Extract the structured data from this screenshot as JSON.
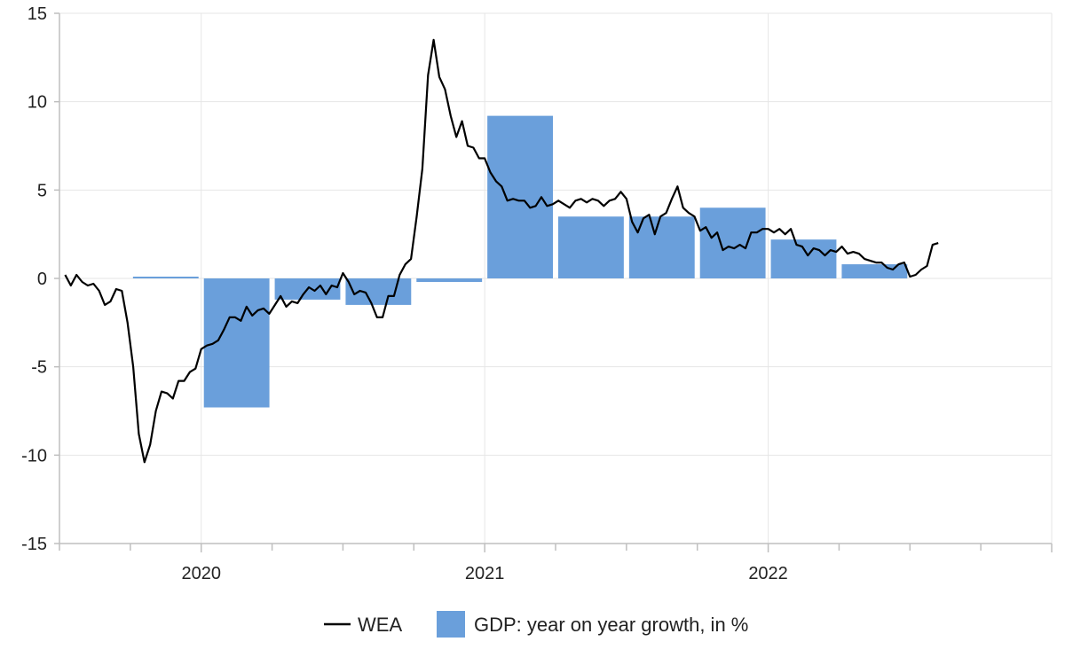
{
  "chart_data": {
    "type": "bar+line",
    "title": "",
    "xlabel": "",
    "ylabel": "",
    "ylim": [
      -15,
      15
    ],
    "y_ticks": [
      {
        "value": 15,
        "label": "15"
      },
      {
        "value": 10,
        "label": "10"
      },
      {
        "value": 5,
        "label": "5"
      },
      {
        "value": 0,
        "label": "0"
      },
      {
        "value": -5,
        "label": "-5"
      },
      {
        "value": -10,
        "label": "-10"
      },
      {
        "value": -15,
        "label": "-15"
      }
    ],
    "x_year_labels": [
      {
        "label": "2020",
        "t": 2020.0
      },
      {
        "label": "2021",
        "t": 2021.0
      },
      {
        "label": "2022",
        "t": 2022.0
      }
    ],
    "x_range": [
      2019.5,
      2023.0
    ],
    "quarter_ticks": [
      2019.5,
      2019.75,
      2020.0,
      2020.25,
      2020.5,
      2020.75,
      2021.0,
      2021.25,
      2021.5,
      2021.75,
      2022.0,
      2022.25,
      2022.5,
      2022.75,
      2023.0
    ],
    "vertical_gridlines": [
      2020.0,
      2021.0,
      2022.0
    ],
    "legend_position": "bottom-center",
    "colors": {
      "bar": "#6a9fdb",
      "line": "#000000",
      "grid": "#e6e6e6",
      "axis": "#bfbfbf"
    },
    "series": [
      {
        "name": "GDP: year on year growth, in %",
        "type": "bar",
        "quarters": [
          {
            "start": 2019.75,
            "end": 2020.0,
            "value": 0.1
          },
          {
            "start": 2020.0,
            "end": 2020.25,
            "value": -7.3
          },
          {
            "start": 2020.25,
            "end": 2020.5,
            "value": -1.2
          },
          {
            "start": 2020.5,
            "end": 2020.75,
            "value": -1.5
          },
          {
            "start": 2020.75,
            "end": 2021.0,
            "value": -0.2
          },
          {
            "start": 2021.0,
            "end": 2021.25,
            "value": 9.2
          },
          {
            "start": 2021.25,
            "end": 2021.5,
            "value": 3.5
          },
          {
            "start": 2021.5,
            "end": 2021.75,
            "value": 3.5
          },
          {
            "start": 2021.75,
            "end": 2022.0,
            "value": 4.0
          },
          {
            "start": 2022.0,
            "end": 2022.25,
            "value": 2.2
          },
          {
            "start": 2022.25,
            "end": 2022.5,
            "value": 0.8
          }
        ]
      },
      {
        "name": "WEA",
        "type": "line",
        "points": [
          [
            2019.52,
            0.2
          ],
          [
            2019.54,
            -0.4
          ],
          [
            2019.56,
            0.2
          ],
          [
            2019.58,
            -0.2
          ],
          [
            2019.6,
            -0.4
          ],
          [
            2019.62,
            -0.3
          ],
          [
            2019.64,
            -0.7
          ],
          [
            2019.66,
            -1.5
          ],
          [
            2019.68,
            -1.3
          ],
          [
            2019.7,
            -0.6
          ],
          [
            2019.72,
            -0.7
          ],
          [
            2019.74,
            -2.5
          ],
          [
            2019.76,
            -5.0
          ],
          [
            2019.78,
            -8.8
          ],
          [
            2019.8,
            -10.4
          ],
          [
            2019.82,
            -9.4
          ],
          [
            2019.84,
            -7.5
          ],
          [
            2019.86,
            -6.4
          ],
          [
            2019.88,
            -6.5
          ],
          [
            2019.9,
            -6.8
          ],
          [
            2019.92,
            -5.8
          ],
          [
            2019.94,
            -5.8
          ],
          [
            2019.96,
            -5.3
          ],
          [
            2019.98,
            -5.1
          ],
          [
            2020.0,
            -4.0
          ],
          [
            2020.02,
            -3.8
          ],
          [
            2020.04,
            -3.7
          ],
          [
            2020.06,
            -3.5
          ],
          [
            2020.08,
            -2.9
          ],
          [
            2020.1,
            -2.2
          ],
          [
            2020.12,
            -2.2
          ],
          [
            2020.14,
            -2.4
          ],
          [
            2020.16,
            -1.6
          ],
          [
            2020.18,
            -2.1
          ],
          [
            2020.2,
            -1.8
          ],
          [
            2020.22,
            -1.7
          ],
          [
            2020.24,
            -2.0
          ],
          [
            2020.26,
            -1.5
          ],
          [
            2020.28,
            -1.0
          ],
          [
            2020.3,
            -1.6
          ],
          [
            2020.32,
            -1.3
          ],
          [
            2020.34,
            -1.4
          ],
          [
            2020.36,
            -0.9
          ],
          [
            2020.38,
            -0.5
          ],
          [
            2020.4,
            -0.7
          ],
          [
            2020.42,
            -0.4
          ],
          [
            2020.44,
            -0.9
          ],
          [
            2020.46,
            -0.4
          ],
          [
            2020.48,
            -0.5
          ],
          [
            2020.5,
            0.3
          ],
          [
            2020.52,
            -0.2
          ],
          [
            2020.54,
            -0.9
          ],
          [
            2020.56,
            -0.7
          ],
          [
            2020.58,
            -0.8
          ],
          [
            2020.6,
            -1.4
          ],
          [
            2020.62,
            -2.2
          ],
          [
            2020.64,
            -2.2
          ],
          [
            2020.66,
            -1.0
          ],
          [
            2020.68,
            -1.0
          ],
          [
            2020.7,
            0.2
          ],
          [
            2020.72,
            0.8
          ],
          [
            2020.74,
            1.1
          ],
          [
            2020.76,
            3.5
          ],
          [
            2020.78,
            6.2
          ],
          [
            2020.8,
            11.5
          ],
          [
            2020.82,
            13.5
          ],
          [
            2020.84,
            11.4
          ],
          [
            2020.86,
            10.7
          ],
          [
            2020.88,
            9.2
          ],
          [
            2020.9,
            8.0
          ],
          [
            2020.92,
            8.9
          ],
          [
            2020.94,
            7.5
          ],
          [
            2020.96,
            7.4
          ],
          [
            2020.98,
            6.8
          ],
          [
            2021.0,
            6.8
          ],
          [
            2021.02,
            6.0
          ],
          [
            2021.04,
            5.5
          ],
          [
            2021.06,
            5.2
          ],
          [
            2021.08,
            4.4
          ],
          [
            2021.1,
            4.5
          ],
          [
            2021.12,
            4.4
          ],
          [
            2021.14,
            4.4
          ],
          [
            2021.16,
            4.0
          ],
          [
            2021.18,
            4.1
          ],
          [
            2021.2,
            4.6
          ],
          [
            2021.22,
            4.1
          ],
          [
            2021.24,
            4.2
          ],
          [
            2021.26,
            4.4
          ],
          [
            2021.28,
            4.2
          ],
          [
            2021.3,
            4.0
          ],
          [
            2021.32,
            4.4
          ],
          [
            2021.34,
            4.5
          ],
          [
            2021.36,
            4.3
          ],
          [
            2021.38,
            4.5
          ],
          [
            2021.4,
            4.4
          ],
          [
            2021.42,
            4.1
          ],
          [
            2021.44,
            4.4
          ],
          [
            2021.46,
            4.5
          ],
          [
            2021.48,
            4.9
          ],
          [
            2021.5,
            4.5
          ],
          [
            2021.52,
            3.2
          ],
          [
            2021.54,
            2.6
          ],
          [
            2021.56,
            3.4
          ],
          [
            2021.58,
            3.6
          ],
          [
            2021.6,
            2.5
          ],
          [
            2021.62,
            3.5
          ],
          [
            2021.64,
            3.7
          ],
          [
            2021.66,
            4.5
          ],
          [
            2021.68,
            5.2
          ],
          [
            2021.7,
            4.0
          ],
          [
            2021.72,
            3.7
          ],
          [
            2021.74,
            3.5
          ],
          [
            2021.76,
            2.7
          ],
          [
            2021.78,
            2.9
          ],
          [
            2021.8,
            2.3
          ],
          [
            2021.82,
            2.6
          ],
          [
            2021.84,
            1.6
          ],
          [
            2021.86,
            1.8
          ],
          [
            2021.88,
            1.7
          ],
          [
            2021.9,
            1.9
          ],
          [
            2021.92,
            1.7
          ],
          [
            2021.94,
            2.6
          ],
          [
            2021.96,
            2.6
          ],
          [
            2021.98,
            2.8
          ],
          [
            2022.0,
            2.8
          ],
          [
            2022.02,
            2.6
          ],
          [
            2022.04,
            2.8
          ],
          [
            2022.06,
            2.5
          ],
          [
            2022.08,
            2.8
          ],
          [
            2022.1,
            1.9
          ],
          [
            2022.12,
            1.8
          ],
          [
            2022.14,
            1.3
          ],
          [
            2022.16,
            1.7
          ],
          [
            2022.18,
            1.6
          ],
          [
            2022.2,
            1.3
          ],
          [
            2022.22,
            1.6
          ],
          [
            2022.24,
            1.5
          ],
          [
            2022.26,
            1.8
          ],
          [
            2022.28,
            1.4
          ],
          [
            2022.3,
            1.5
          ],
          [
            2022.32,
            1.4
          ],
          [
            2022.34,
            1.1
          ],
          [
            2022.36,
            1.0
          ],
          [
            2022.38,
            0.9
          ],
          [
            2022.4,
            0.9
          ],
          [
            2022.42,
            0.6
          ],
          [
            2022.44,
            0.5
          ],
          [
            2022.46,
            0.8
          ],
          [
            2022.48,
            0.9
          ],
          [
            2022.5,
            0.1
          ],
          [
            2022.52,
            0.2
          ],
          [
            2022.54,
            0.5
          ],
          [
            2022.56,
            0.7
          ],
          [
            2022.58,
            1.9
          ],
          [
            2022.6,
            2.0
          ]
        ]
      }
    ],
    "legend": [
      {
        "name": "WEA",
        "symbol": "line"
      },
      {
        "name": "GDP: year on year growth, in %",
        "symbol": "box"
      }
    ]
  }
}
